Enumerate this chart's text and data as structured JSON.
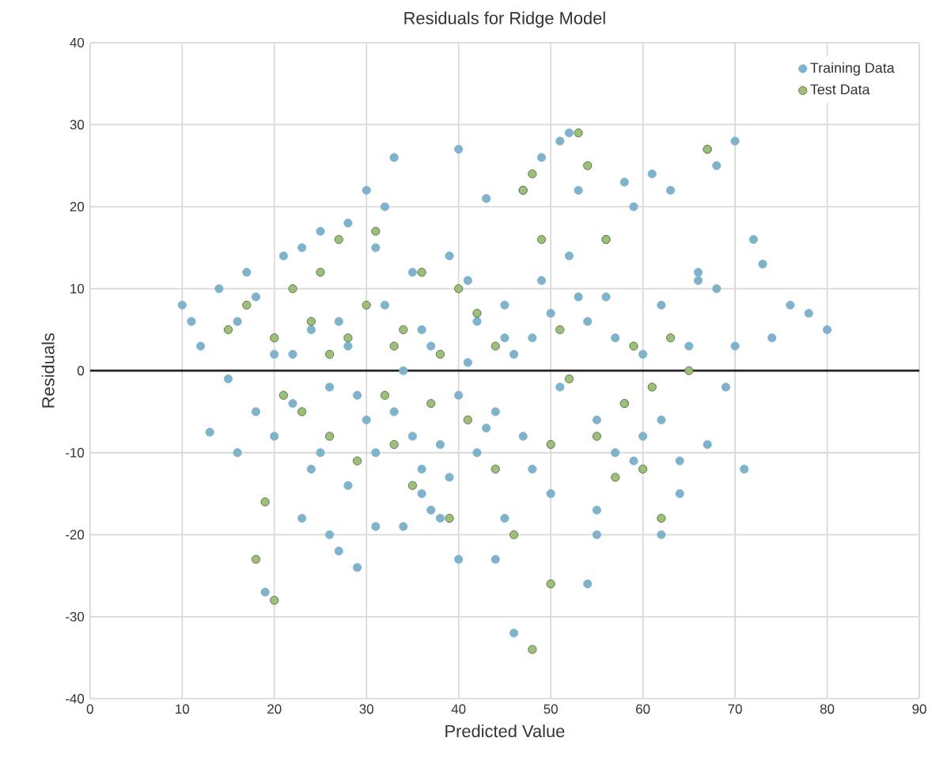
{
  "chart_data": {
    "type": "scatter",
    "title": "Residuals for Ridge Model",
    "xlabel": "Predicted Value",
    "ylabel": "Residuals",
    "xlim": [
      0,
      90
    ],
    "xticks": [
      0,
      10,
      20,
      30,
      40,
      50,
      60,
      70,
      80,
      90
    ],
    "ylim": [
      -40,
      40
    ],
    "yticks": [
      -40,
      -30,
      -20,
      -10,
      0,
      10,
      20,
      30,
      40
    ],
    "grid": true,
    "legend": "top right",
    "marker": "circle",
    "ref_lines": [
      {
        "axis": "y",
        "value": 0,
        "color": "#222222"
      }
    ],
    "series": [
      {
        "name": "Training Data",
        "color": "#7fb2cb",
        "x": [
          10,
          11,
          12,
          13,
          14,
          15,
          16,
          17,
          18,
          19,
          20,
          21,
          22,
          23,
          24,
          25,
          26,
          27,
          28,
          29,
          30,
          31,
          32,
          33,
          34,
          35,
          36,
          37,
          38,
          39,
          40,
          40,
          42,
          43,
          44,
          45,
          46,
          47,
          48,
          49,
          50,
          51,
          52,
          53,
          54,
          55,
          56,
          57,
          58,
          59,
          60,
          61,
          62,
          63,
          64,
          65,
          66,
          67,
          68,
          69,
          70,
          71,
          72,
          73,
          74,
          76,
          78,
          80,
          52,
          54,
          56,
          58,
          60,
          62,
          64,
          66,
          68,
          70,
          20,
          22,
          24,
          26,
          28,
          30,
          32,
          34,
          36,
          38,
          40,
          42,
          44,
          46,
          48,
          50,
          25,
          27,
          29,
          31,
          33,
          35,
          37,
          39,
          41,
          43,
          45,
          47,
          49,
          51,
          53,
          55,
          57,
          59,
          18,
          16,
          23,
          31,
          36,
          28,
          45,
          55,
          41,
          62,
          67
        ],
        "values": [
          8,
          6,
          3,
          -7.5,
          10,
          -1,
          6,
          12,
          9,
          -27,
          -8,
          14,
          2,
          15,
          -12,
          17,
          -20,
          -22,
          18,
          -24,
          22,
          15,
          20,
          26,
          -19,
          12,
          -15,
          -17,
          -18,
          14,
          27,
          -23,
          -10,
          21,
          -23,
          8,
          -32,
          22,
          4,
          26,
          -15,
          28,
          29,
          22,
          -26,
          -17,
          16,
          -10,
          23,
          20,
          -8,
          24,
          -20,
          22,
          -11,
          3,
          11,
          27,
          25,
          -2,
          28,
          -12,
          16,
          13,
          4,
          8,
          7,
          5,
          14,
          6,
          9,
          -4,
          2,
          -6,
          -15,
          12,
          10,
          3,
          2,
          -4,
          5,
          -2,
          3,
          -6,
          8,
          0,
          5,
          -9,
          -3,
          6,
          -5,
          2,
          -12,
          7,
          -10,
          6,
          -3,
          -10,
          -5,
          -8,
          3,
          -13,
          1,
          -7,
          4,
          -8,
          11,
          -2,
          9,
          -6,
          4,
          -11,
          -5,
          -10,
          -18,
          -19,
          -12,
          -14,
          -18,
          -20,
          11,
          8,
          -9
        ]
      },
      {
        "name": "Test Data",
        "color": "#9cc07a",
        "x": [
          15,
          17,
          18,
          19,
          20,
          20,
          22,
          23,
          24,
          25,
          26,
          27,
          28,
          29,
          30,
          31,
          32,
          33,
          34,
          35,
          36,
          37,
          38,
          39,
          40,
          41,
          42,
          44,
          46,
          47,
          48,
          48,
          49,
          50,
          51,
          52,
          53,
          54,
          55,
          56,
          57,
          58,
          59,
          60,
          61,
          62,
          63,
          65,
          67,
          26,
          33,
          21,
          44,
          50
        ],
        "values": [
          5,
          8,
          -23,
          -16,
          -28,
          4,
          10,
          -5,
          6,
          12,
          -8,
          16,
          4,
          -11,
          8,
          17,
          -3,
          -9,
          5,
          -14,
          12,
          -4,
          2,
          -18,
          10,
          -6,
          7,
          -12,
          -20,
          22,
          -34,
          24,
          16,
          -26,
          5,
          -1,
          29,
          25,
          -8,
          16,
          -13,
          -4,
          3,
          -12,
          -2,
          -18,
          4,
          0,
          27,
          2,
          3,
          -3,
          3,
          -9
        ]
      }
    ]
  }
}
